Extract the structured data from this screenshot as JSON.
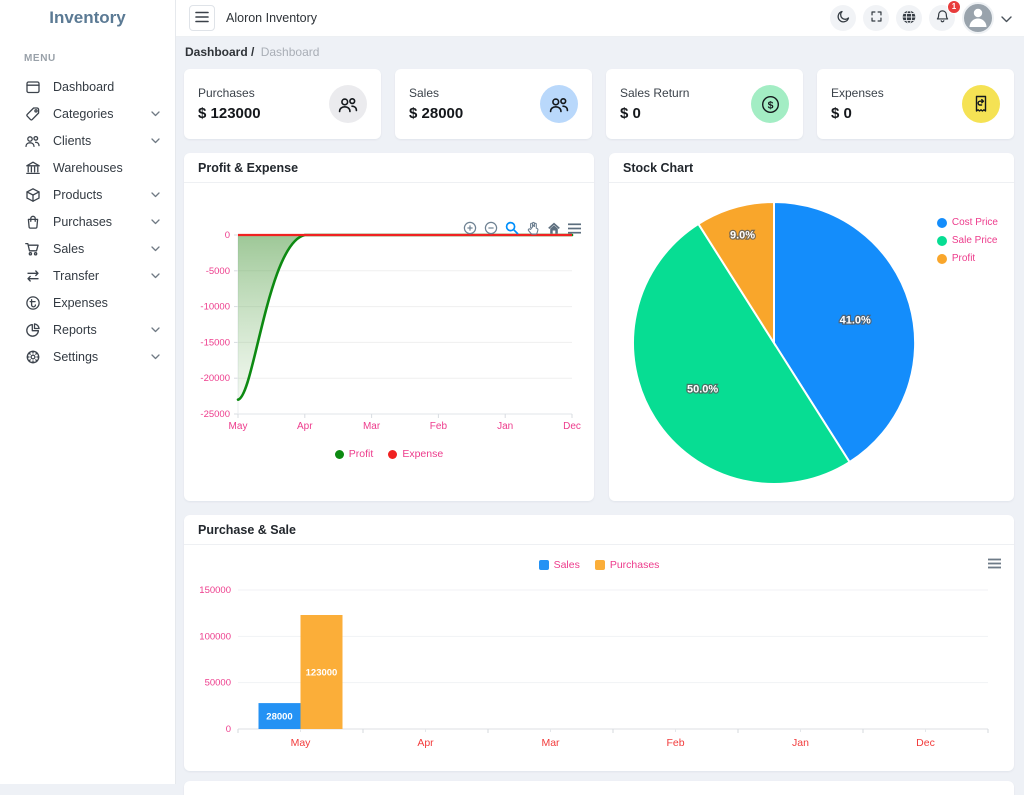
{
  "app": {
    "logo": "Inventory"
  },
  "sidebar": {
    "menu_label": "MENU",
    "items": [
      {
        "label": "Dashboard",
        "icon": "dashboard-icon",
        "expandable": false
      },
      {
        "label": "Categories",
        "icon": "tag-icon",
        "expandable": true
      },
      {
        "label": "Clients",
        "icon": "users-icon",
        "expandable": true
      },
      {
        "label": "Warehouses",
        "icon": "bank-icon",
        "expandable": false
      },
      {
        "label": "Products",
        "icon": "cube-icon",
        "expandable": true
      },
      {
        "label": "Purchases",
        "icon": "shopping-bag-icon",
        "expandable": true
      },
      {
        "label": "Sales",
        "icon": "cart-icon",
        "expandable": true
      },
      {
        "label": "Transfer",
        "icon": "transfer-arrows-icon",
        "expandable": true
      },
      {
        "label": "Expenses",
        "icon": "currency-circle-icon",
        "expandable": false
      },
      {
        "label": "Reports",
        "icon": "pie-chart-icon",
        "expandable": true
      },
      {
        "label": "Settings",
        "icon": "gear-icon",
        "expandable": true
      }
    ]
  },
  "topbar": {
    "title": "Aloron Inventory",
    "notification_count": "1",
    "icons": [
      "moon-icon",
      "fullscreen-icon",
      "globe-icon",
      "bell-icon",
      "avatar",
      "chevron-down-icon"
    ]
  },
  "breadcrumb": {
    "primary": "Dashboard",
    "separator": " /",
    "secondary": "Dashboard"
  },
  "stats": [
    {
      "title": "Purchases",
      "value": "$ 123000",
      "icon": "users-icon",
      "circle_color": "#ebebee"
    },
    {
      "title": "Sales",
      "value": "$ 28000",
      "icon": "users-icon",
      "circle_color": "#b9d8fb"
    },
    {
      "title": "Sales Return",
      "value": "$ 0",
      "icon": "dollar-circle-icon",
      "circle_color": "#a3edc4"
    },
    {
      "title": "Expenses",
      "value": "$ 0",
      "icon": "receipt-return-icon",
      "circle_color": "#f5e254"
    }
  ],
  "chart_data": [
    {
      "name": "profit_expense",
      "type": "area",
      "title": "Profit & Expense",
      "x": [
        "May",
        "Apr",
        "Mar",
        "Feb",
        "Jan",
        "Dec"
      ],
      "series": [
        {
          "name": "Profit",
          "color": "#0d8a12",
          "values": [
            -23000,
            0,
            0,
            0,
            0,
            0
          ]
        },
        {
          "name": "Expense",
          "color": "#f02222",
          "values": [
            0,
            0,
            0,
            0,
            0,
            0
          ]
        }
      ],
      "yticks": [
        0,
        -5000,
        -10000,
        -15000,
        -20000,
        -25000
      ],
      "ylim": [
        -25000,
        0
      ],
      "grid": true,
      "legend_position": "bottom",
      "label_color": "#ed3c8c",
      "toolbar": [
        "zoom-in-icon",
        "zoom-out-icon",
        "selection-zoom-icon",
        "pan-icon",
        "home-icon",
        "menu-icon"
      ]
    },
    {
      "name": "stock",
      "type": "pie",
      "title": "Stock Chart",
      "slices": [
        {
          "label": "Cost Price",
          "value": 41.0,
          "display": "41.0%",
          "color": "#148dfb"
        },
        {
          "label": "Sale Price",
          "value": 50.0,
          "display": "50.0%",
          "color": "#07dd93"
        },
        {
          "label": "Profit",
          "value": 9.0,
          "display": "9.0%",
          "color": "#f9a62b"
        }
      ],
      "legend_position": "right",
      "label_color": "#ed3c8c"
    },
    {
      "name": "purchase_sale",
      "type": "bar",
      "title": "Purchase & Sale",
      "categories": [
        "May",
        "Apr",
        "Mar",
        "Feb",
        "Jan",
        "Dec"
      ],
      "series": [
        {
          "name": "Sales",
          "color": "#2492f4",
          "values": [
            28000,
            0,
            0,
            0,
            0,
            0
          ]
        },
        {
          "name": "Purchases",
          "color": "#fbae39",
          "values": [
            123000,
            0,
            0,
            0,
            0,
            0
          ]
        }
      ],
      "yticks": [
        0,
        50000,
        100000,
        150000
      ],
      "ylim": [
        0,
        150000
      ],
      "grid": true,
      "legend_position": "top-center",
      "xlabel_color": "#f23b3b",
      "ylabel_color": "#ed3c8c"
    }
  ]
}
